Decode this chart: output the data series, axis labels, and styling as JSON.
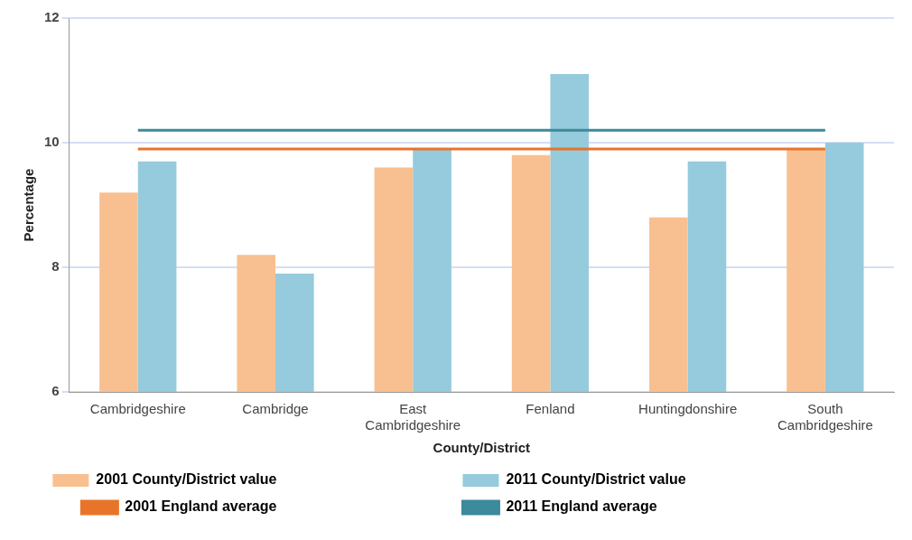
{
  "chart_data": {
    "type": "bar",
    "xlabel": "County/District",
    "ylabel": "Percentage",
    "categories": [
      "Cambridgeshire",
      "Cambridge",
      "East Cambridgeshire",
      "Fenland",
      "Huntingdonshire",
      "South Cambridgeshire"
    ],
    "series": [
      {
        "name": "2001 County/District value",
        "color": "#f8c090",
        "values": [
          9.2,
          8.2,
          9.6,
          9.8,
          8.8,
          9.9
        ]
      },
      {
        "name": "2011 County/District value",
        "color": "#95cbdc",
        "values": [
          9.7,
          7.9,
          9.9,
          11.1,
          9.7,
          10.0
        ]
      },
      {
        "name": "2001 England average",
        "type": "line",
        "color": "#e8742a",
        "values": [
          9.9,
          9.9,
          9.9,
          9.9,
          9.9,
          9.9
        ]
      },
      {
        "name": "2011 England average",
        "type": "line",
        "color": "#3c8a9c",
        "values": [
          10.2,
          10.2,
          10.2,
          10.2,
          10.2,
          10.2
        ]
      }
    ],
    "ylim": [
      6,
      12
    ],
    "yticks": [
      6,
      8,
      10,
      12
    ],
    "grid": "y",
    "legend": "bottom",
    "marker": "none"
  }
}
